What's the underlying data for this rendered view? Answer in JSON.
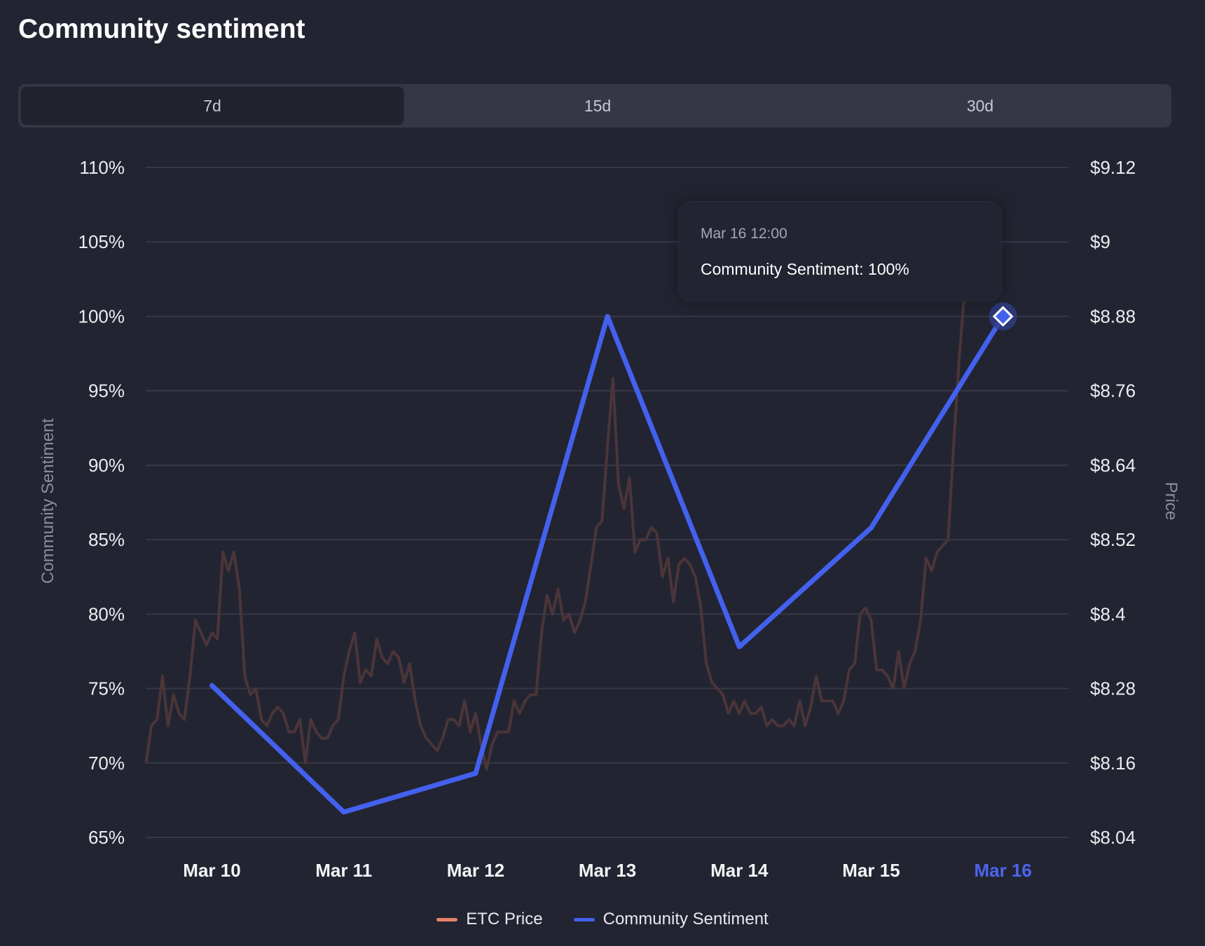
{
  "header": {
    "title": "Community sentiment"
  },
  "tabs": [
    {
      "label": "7d",
      "active": true
    },
    {
      "label": "15d",
      "active": false
    },
    {
      "label": "30d",
      "active": false
    }
  ],
  "tooltip": {
    "date": "Mar 16 12:00",
    "text": "Community Sentiment: 100%"
  },
  "chart_data": {
    "type": "line",
    "title": "",
    "x_ticks": [
      "Mar 10",
      "Mar 11",
      "Mar 12",
      "Mar 13",
      "Mar 14",
      "Mar 15",
      "Mar 16"
    ],
    "highlighted_x": "Mar 16",
    "y_left": {
      "label": "Community Sentiment",
      "ticks": [
        "65%",
        "70%",
        "75%",
        "80%",
        "85%",
        "90%",
        "95%",
        "100%",
        "105%",
        "110%"
      ],
      "range": [
        65,
        110
      ]
    },
    "y_right": {
      "label": "Price",
      "ticks": [
        "$8.04",
        "$8.16",
        "$8.28",
        "$8.4",
        "$8.52",
        "$8.64",
        "$8.76",
        "$8.88",
        "$9",
        "$9.12"
      ],
      "range": [
        8.04,
        9.12
      ]
    },
    "grid": true,
    "legend_position": "bottom",
    "series": [
      {
        "name": "ETC Price",
        "axis": "right",
        "color": "#e8826a",
        "line_color": "#4b3539",
        "start": "Mar 9 12:00",
        "interval": "1h",
        "values": [
          8.16,
          8.22,
          8.23,
          8.3,
          8.22,
          8.27,
          8.24,
          8.23,
          8.3,
          8.39,
          8.37,
          8.35,
          8.37,
          8.36,
          8.5,
          8.47,
          8.5,
          8.44,
          8.3,
          8.27,
          8.28,
          8.23,
          8.22,
          8.24,
          8.25,
          8.24,
          8.21,
          8.21,
          8.23,
          8.16,
          8.23,
          8.21,
          8.2,
          8.2,
          8.22,
          8.23,
          8.3,
          8.34,
          8.37,
          8.29,
          8.31,
          8.3,
          8.36,
          8.33,
          8.32,
          8.34,
          8.33,
          8.29,
          8.32,
          8.26,
          8.22,
          8.2,
          8.19,
          8.18,
          8.2,
          8.23,
          8.23,
          8.22,
          8.26,
          8.21,
          8.24,
          8.19,
          8.15,
          8.19,
          8.21,
          8.21,
          8.21,
          8.26,
          8.24,
          8.26,
          8.27,
          8.27,
          8.37,
          8.43,
          8.4,
          8.44,
          8.39,
          8.4,
          8.37,
          8.39,
          8.42,
          8.48,
          8.54,
          8.55,
          8.67,
          8.78,
          8.61,
          8.57,
          8.62,
          8.5,
          8.52,
          8.52,
          8.54,
          8.53,
          8.46,
          8.49,
          8.42,
          8.48,
          8.49,
          8.48,
          8.46,
          8.41,
          8.32,
          8.29,
          8.28,
          8.27,
          8.24,
          8.26,
          8.24,
          8.26,
          8.24,
          8.24,
          8.25,
          8.22,
          8.23,
          8.22,
          8.22,
          8.23,
          8.22,
          8.26,
          8.22,
          8.25,
          8.3,
          8.26,
          8.26,
          8.26,
          8.24,
          8.26,
          8.31,
          8.32,
          8.4,
          8.41,
          8.39,
          8.31,
          8.31,
          8.3,
          8.28,
          8.34,
          8.28,
          8.32,
          8.34,
          8.39,
          8.49,
          8.47,
          8.5,
          8.51,
          8.52,
          8.67,
          8.81,
          8.92
        ]
      },
      {
        "name": "Community Sentiment",
        "axis": "left",
        "color": "#4361ee",
        "x": [
          "Mar 10 12:00",
          "Mar 11 12:00",
          "Mar 12 12:00",
          "Mar 13 12:00",
          "Mar 14 12:00",
          "Mar 15 12:00",
          "Mar 16 12:00"
        ],
        "values": [
          75.2,
          66.7,
          69.3,
          100,
          77.8,
          85.8,
          100
        ]
      }
    ]
  }
}
